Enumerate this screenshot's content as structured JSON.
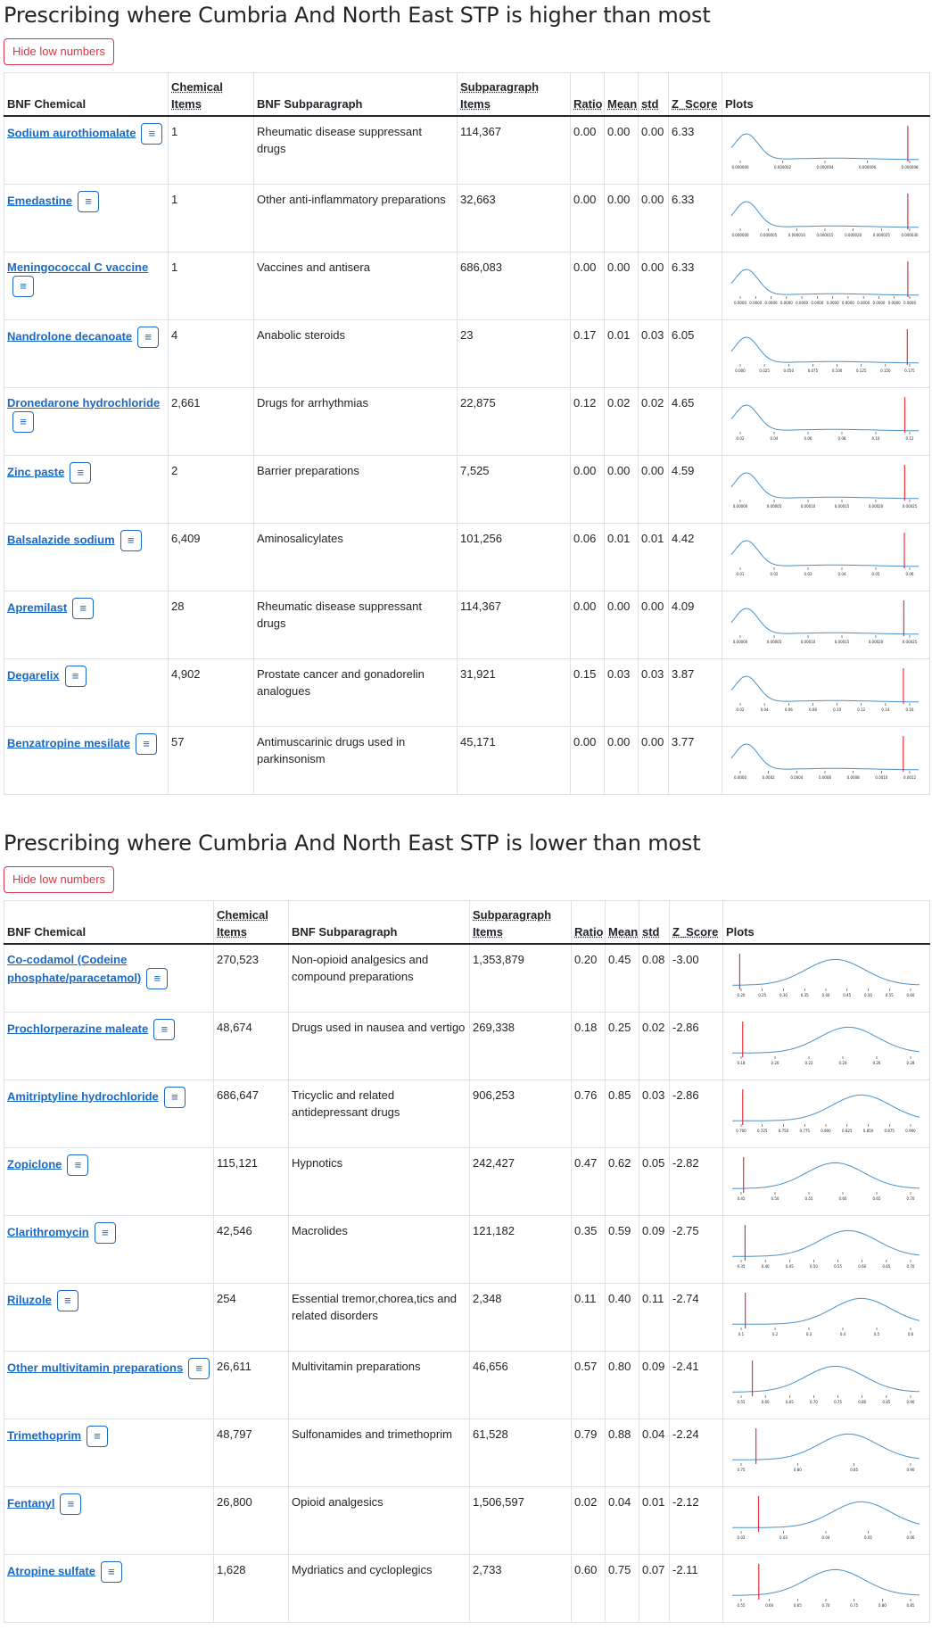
{
  "higher": {
    "title": "Prescribing where Cumbria And North East STP is higher than most",
    "hide_label": "Hide low numbers",
    "headers": [
      "BNF Chemical",
      "Chemical Items",
      "BNF Subparagraph",
      "Subparagraph Items",
      "Ratio",
      "Mean",
      "std",
      "Z_Score",
      "Plots"
    ],
    "rows": [
      {
        "chemical": "Sodium aurothiomalate",
        "items": "1",
        "subparagraph": "Rheumatic disease suppressant drugs",
        "sub_items": "114,367",
        "ratio": "0.00",
        "mean": "0.00",
        "std": "0.00",
        "z": "6.33",
        "ticks": [
          "0.000000",
          "0.000002",
          "0.000004",
          "0.000006",
          "0.000008"
        ]
      },
      {
        "chemical": "Emedastine",
        "items": "1",
        "subparagraph": "Other anti-inflammatory preparations",
        "sub_items": "32,663",
        "ratio": "0.00",
        "mean": "0.00",
        "std": "0.00",
        "z": "6.33",
        "ticks": [
          "0.000000",
          "0.000005",
          "0.000010",
          "0.000015",
          "0.000020",
          "0.000025",
          "0.000030"
        ]
      },
      {
        "chemical": "Meningococcal C vaccine",
        "items": "1",
        "subparagraph": "Vaccines and antisera",
        "sub_items": "686,083",
        "ratio": "0.00",
        "mean": "0.00",
        "std": "0.00",
        "z": "6.33",
        "ticks": [
          "0.0000",
          "0.0000",
          "0.0000",
          "0.0000",
          "0.0000",
          "0.0000",
          "0.0000",
          "0.0000",
          "0.0000",
          "0.0000",
          "0.0000",
          "0.0000"
        ]
      },
      {
        "chemical": "Nandrolone decanoate",
        "items": "4",
        "subparagraph": "Anabolic steroids",
        "sub_items": "23",
        "ratio": "0.17",
        "mean": "0.01",
        "std": "0.03",
        "z": "6.05",
        "ticks": [
          "0.000",
          "0.025",
          "0.050",
          "0.075",
          "0.100",
          "0.125",
          "0.150",
          "0.175"
        ]
      },
      {
        "chemical": "Dronedarone hydrochloride",
        "items": "2,661",
        "subparagraph": "Drugs for arrhythmias",
        "sub_items": "22,875",
        "ratio": "0.12",
        "mean": "0.02",
        "std": "0.02",
        "z": "4.65",
        "ticks": [
          "0.02",
          "0.04",
          "0.06",
          "0.08",
          "0.10",
          "0.12"
        ]
      },
      {
        "chemical": "Zinc paste",
        "items": "2",
        "subparagraph": "Barrier preparations",
        "sub_items": "7,525",
        "ratio": "0.00",
        "mean": "0.00",
        "std": "0.00",
        "z": "4.59",
        "ticks": [
          "0.00000",
          "0.00005",
          "0.00010",
          "0.00015",
          "0.00020",
          "0.00025"
        ]
      },
      {
        "chemical": "Balsalazide sodium",
        "items": "6,409",
        "subparagraph": "Aminosalicylates",
        "sub_items": "101,256",
        "ratio": "0.06",
        "mean": "0.01",
        "std": "0.01",
        "z": "4.42",
        "ticks": [
          "0.01",
          "0.02",
          "0.03",
          "0.04",
          "0.05",
          "0.06"
        ]
      },
      {
        "chemical": "Apremilast",
        "items": "28",
        "subparagraph": "Rheumatic disease suppressant drugs",
        "sub_items": "114,367",
        "ratio": "0.00",
        "mean": "0.00",
        "std": "0.00",
        "z": "4.09",
        "ticks": [
          "0.00000",
          "0.00005",
          "0.00010",
          "0.00015",
          "0.00020",
          "0.00025"
        ]
      },
      {
        "chemical": "Degarelix",
        "items": "4,902",
        "subparagraph": "Prostate cancer and gonadorelin analogues",
        "sub_items": "31,921",
        "ratio": "0.15",
        "mean": "0.03",
        "std": "0.03",
        "z": "3.87",
        "ticks": [
          "0.02",
          "0.04",
          "0.06",
          "0.08",
          "0.10",
          "0.12",
          "0.14",
          "0.16"
        ]
      },
      {
        "chemical": "Benzatropine mesilate",
        "items": "57",
        "subparagraph": "Antimuscarinic drugs used in parkinsonism",
        "sub_items": "45,171",
        "ratio": "0.00",
        "mean": "0.00",
        "std": "0.00",
        "z": "3.77",
        "ticks": [
          "0.0000",
          "0.0002",
          "0.0004",
          "0.0006",
          "0.0008",
          "0.0010",
          "0.0012"
        ]
      }
    ]
  },
  "lower": {
    "title": "Prescribing where Cumbria And North East STP is lower than most",
    "hide_label": "Hide low numbers",
    "headers": [
      "BNF Chemical",
      "Chemical Items",
      "BNF Subparagraph",
      "Subparagraph Items",
      "Ratio",
      "Mean",
      "std",
      "Z_Score",
      "Plots"
    ],
    "rows": [
      {
        "chemical": "Co-codamol (Codeine phosphate/paracetamol)",
        "items": "270,523",
        "subparagraph": "Non-opioid analgesics and compound preparations",
        "sub_items": "1,353,879",
        "ratio": "0.20",
        "mean": "0.45",
        "std": "0.08",
        "z": "-3.00",
        "ticks": [
          "0.20",
          "0.25",
          "0.30",
          "0.35",
          "0.40",
          "0.45",
          "0.50",
          "0.55",
          "0.60"
        ]
      },
      {
        "chemical": "Prochlorperazine maleate",
        "items": "48,674",
        "subparagraph": "Drugs used in nausea and vertigo",
        "sub_items": "269,338",
        "ratio": "0.18",
        "mean": "0.25",
        "std": "0.02",
        "z": "-2.86",
        "ticks": [
          "0.18",
          "0.20",
          "0.22",
          "0.24",
          "0.26",
          "0.28"
        ]
      },
      {
        "chemical": "Amitriptyline hydrochloride",
        "items": "686,647",
        "subparagraph": "Tricyclic and related antidepressant drugs",
        "sub_items": "906,253",
        "ratio": "0.76",
        "mean": "0.85",
        "std": "0.03",
        "z": "-2.86",
        "ticks": [
          "0.700",
          "0.725",
          "0.750",
          "0.775",
          "0.800",
          "0.825",
          "0.850",
          "0.875",
          "0.900"
        ]
      },
      {
        "chemical": "Zopiclone",
        "items": "115,121",
        "subparagraph": "Hypnotics",
        "sub_items": "242,427",
        "ratio": "0.47",
        "mean": "0.62",
        "std": "0.05",
        "z": "-2.82",
        "ticks": [
          "0.45",
          "0.50",
          "0.55",
          "0.60",
          "0.65",
          "0.70"
        ]
      },
      {
        "chemical": "Clarithromycin",
        "items": "42,546",
        "subparagraph": "Macrolides",
        "sub_items": "121,182",
        "ratio": "0.35",
        "mean": "0.59",
        "std": "0.09",
        "z": "-2.75",
        "ticks": [
          "0.35",
          "0.40",
          "0.45",
          "0.50",
          "0.55",
          "0.60",
          "0.65",
          "0.70"
        ]
      },
      {
        "chemical": "Riluzole",
        "items": "254",
        "subparagraph": "Essential tremor,chorea,tics and related disorders",
        "sub_items": "2,348",
        "ratio": "0.11",
        "mean": "0.40",
        "std": "0.11",
        "z": "-2.74",
        "ticks": [
          "0.1",
          "0.2",
          "0.3",
          "0.4",
          "0.5",
          "0.6"
        ]
      },
      {
        "chemical": "Other multivitamin preparations",
        "items": "26,611",
        "subparagraph": "Multivitamin preparations",
        "sub_items": "46,656",
        "ratio": "0.57",
        "mean": "0.80",
        "std": "0.09",
        "z": "-2.41",
        "ticks": [
          "0.55",
          "0.60",
          "0.65",
          "0.70",
          "0.75",
          "0.80",
          "0.85",
          "0.90"
        ]
      },
      {
        "chemical": "Trimethoprim",
        "items": "48,797",
        "subparagraph": "Sulfonamides and trimethoprim",
        "sub_items": "61,528",
        "ratio": "0.79",
        "mean": "0.88",
        "std": "0.04",
        "z": "-2.24",
        "ticks": [
          "0.75",
          "0.80",
          "0.85",
          "0.90"
        ]
      },
      {
        "chemical": "Fentanyl",
        "items": "26,800",
        "subparagraph": "Opioid analgesics",
        "sub_items": "1,506,597",
        "ratio": "0.02",
        "mean": "0.04",
        "std": "0.01",
        "z": "-2.12",
        "ticks": [
          "0.02",
          "0.03",
          "0.04",
          "0.05",
          "0.06"
        ]
      },
      {
        "chemical": "Atropine sulfate",
        "items": "1,628",
        "subparagraph": "Mydriatics and cycloplegics",
        "sub_items": "2,733",
        "ratio": "0.60",
        "mean": "0.75",
        "std": "0.07",
        "z": "-2.11",
        "ticks": [
          "0.55",
          "0.60",
          "0.65",
          "0.70",
          "0.75",
          "0.80",
          "0.85"
        ]
      }
    ]
  },
  "colors": {
    "link": "#1a6ac4",
    "danger": "#dc3545",
    "curve": "#4a90c8",
    "marker": "#e8343c"
  },
  "icons": {
    "row_menu": "hamburger-icon"
  }
}
